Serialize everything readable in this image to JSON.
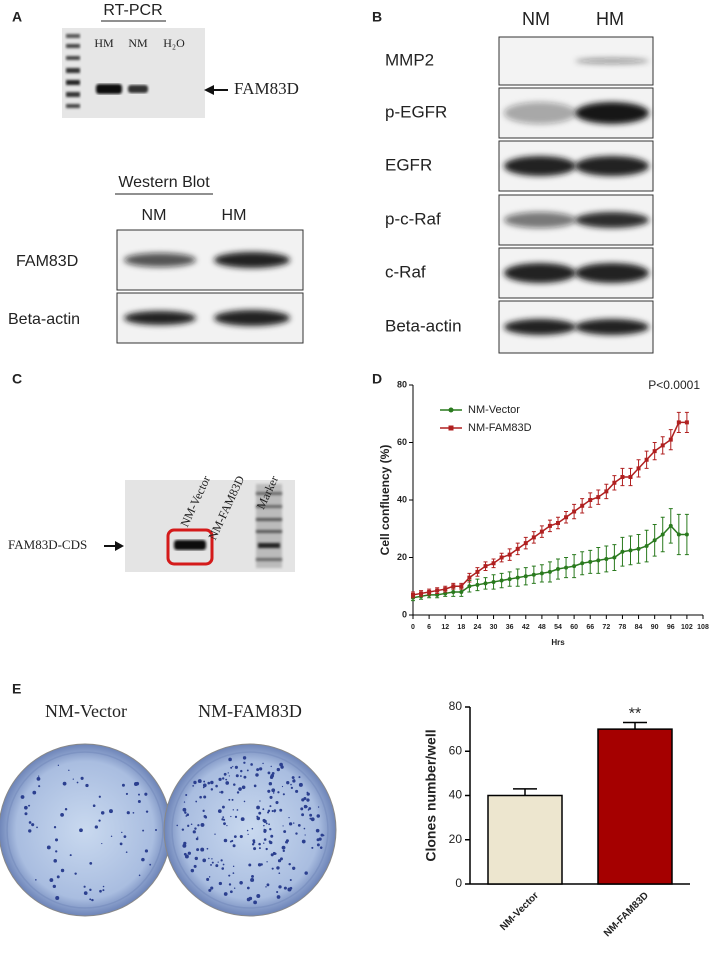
{
  "panel_labels": [
    "A",
    "B",
    "C",
    "D",
    "E"
  ],
  "panel_a": {
    "rt_pcr_title": "RT-PCR",
    "lanes": [
      "HM",
      "NM",
      "H₂O"
    ],
    "arrow_label": "FAM83D",
    "western_title": "Western Blot",
    "western_columns": [
      "NM",
      "HM"
    ],
    "western_rows": [
      "FAM83D",
      "Beta-actin"
    ]
  },
  "panel_b": {
    "columns": [
      "NM",
      "HM"
    ],
    "rows": [
      "MMP2",
      "p-EGFR",
      "EGFR",
      "p-c-Raf",
      "c-Raf",
      "Beta-actin"
    ]
  },
  "panel_c": {
    "lanes": [
      "NM-Vector",
      "NM-FAM83D",
      "Marker"
    ],
    "arrow_label": "FAM83D-CDS"
  },
  "panel_e": {
    "plate_labels": [
      "NM-Vector",
      "NM-FAM83D"
    ]
  },
  "chart_data": [
    {
      "type": "line",
      "annotation": "P<0.0001",
      "xlabel": "Hrs",
      "ylabel": "Cell confluency (%)",
      "x": [
        0,
        3,
        6,
        9,
        12,
        15,
        18,
        21,
        24,
        27,
        30,
        33,
        36,
        39,
        42,
        45,
        48,
        51,
        54,
        57,
        60,
        63,
        66,
        69,
        72,
        75,
        78,
        81,
        84,
        87,
        90,
        93,
        96,
        99,
        102
      ],
      "xlim": [
        0,
        108
      ],
      "xticks": [
        0,
        6,
        12,
        18,
        24,
        30,
        36,
        42,
        48,
        54,
        60,
        66,
        72,
        78,
        84,
        90,
        96,
        102,
        108
      ],
      "ylim": [
        0,
        80
      ],
      "yticks": [
        0,
        20,
        40,
        60,
        80
      ],
      "legend": "upper left",
      "series": [
        {
          "name": "NM-Vector",
          "color": "#2a7a1e",
          "values": [
            6,
            6.5,
            7,
            7,
            7.5,
            8,
            8,
            10,
            10.5,
            11,
            11.5,
            12,
            12.5,
            13,
            13.5,
            14,
            14.5,
            15,
            16,
            16.5,
            17,
            18,
            18.5,
            19,
            19.5,
            20,
            22,
            22.5,
            23,
            24,
            26,
            28,
            31,
            28,
            28
          ],
          "errors": [
            1,
            1,
            1,
            1,
            1,
            1.5,
            1.5,
            2,
            2,
            2,
            2.5,
            2.5,
            2.5,
            3,
            3,
            3,
            3,
            3.5,
            3.5,
            3.5,
            4,
            4,
            4,
            4.5,
            4.5,
            4.5,
            5,
            5,
            5,
            5.5,
            5.5,
            6,
            6,
            7,
            7
          ]
        },
        {
          "name": "NM-FAM83D",
          "color": "#b02020",
          "values": [
            7,
            7.5,
            8,
            8.5,
            9,
            10,
            10,
            13,
            15,
            17,
            18,
            20,
            21,
            23,
            25,
            27,
            29,
            31,
            32,
            34,
            36,
            38,
            40,
            41,
            43,
            46,
            48,
            48,
            51,
            54,
            57,
            59,
            61,
            67,
            67
          ],
          "errors": [
            1,
            1,
            1,
            1,
            1,
            1,
            1,
            1.5,
            1.5,
            1.5,
            1.5,
            1.5,
            2,
            2,
            2,
            2,
            2,
            2,
            2,
            2,
            2.5,
            2.5,
            2.5,
            2.5,
            2.5,
            2.5,
            3,
            3,
            3,
            3,
            3,
            3,
            3.5,
            3.5,
            3.5
          ]
        }
      ]
    },
    {
      "type": "bar",
      "ylabel": "Clones number/well",
      "categories": [
        "NM-Vector",
        "NM-FAM83D"
      ],
      "values": [
        40,
        70
      ],
      "errors": [
        3,
        3
      ],
      "colors": [
        "#ede6cf",
        "#a50000"
      ],
      "significance": [
        null,
        "**"
      ],
      "ylim": [
        0,
        80
      ],
      "yticks": [
        0,
        20,
        40,
        60,
        80
      ]
    }
  ]
}
